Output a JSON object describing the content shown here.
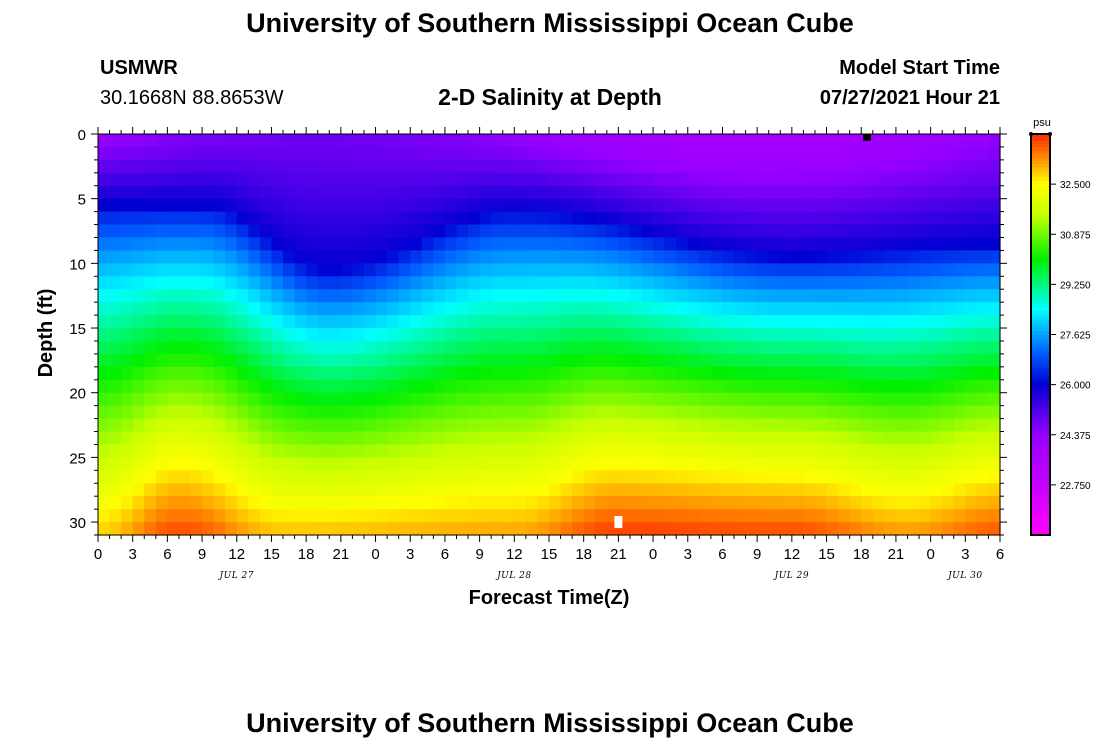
{
  "page": {
    "title_top": "University of Southern Mississippi Ocean Cube",
    "title_bottom": "University of Southern Mississippi Ocean Cube",
    "station": "USMWR",
    "location": "30.1668N  88.8653W",
    "plot_title": "2-D Salinity at Depth",
    "model_start_label": "Model Start Time",
    "model_start_value": "07/27/2021 Hour 21"
  },
  "chart_data": {
    "type": "heatmap",
    "title": "2-D Salinity at Depth",
    "xlabel": "Forecast Time(Z)",
    "ylabel": "Depth (ft)",
    "x_start_hour": 0,
    "x_end_hour": 78,
    "x_ticks": [
      "0",
      "3",
      "6",
      "9",
      "12",
      "15",
      "18",
      "21",
      "0",
      "3",
      "6",
      "9",
      "12",
      "15",
      "18",
      "21",
      "0",
      "3",
      "6",
      "9",
      "12",
      "15",
      "18",
      "21",
      "0",
      "3",
      "6"
    ],
    "day_labels": [
      {
        "text": "JUL 27",
        "hour": 12
      },
      {
        "text": "JUL 28",
        "hour": 36
      },
      {
        "text": "JUL 29",
        "hour": 60
      },
      {
        "text": "JUL 30",
        "hour": 75
      }
    ],
    "y_range": [
      0,
      31
    ],
    "y_ticks": [
      0,
      5,
      10,
      15,
      20,
      25,
      30
    ],
    "colorbar": {
      "unit": "psu",
      "min": 21.125,
      "max": 34.125,
      "tick_values": [
        22.75,
        24.375,
        26.0,
        27.625,
        29.25,
        30.875,
        32.5
      ],
      "tick_labels": [
        "22.750",
        "24.375",
        "26.000",
        "27.625",
        "29.250",
        "30.875",
        "32.500"
      ]
    },
    "model": {
      "time_step_hours": 1,
      "depth_step_ft": 1,
      "description": "Salinity increases with depth; low-salinity (purple/blue) layer deepens near hours 18-21 and 57-66 and shoals near hour 36.",
      "isohaline_depths_26psu": [
        {
          "hour": 0,
          "depth": 5.5
        },
        {
          "hour": 9,
          "depth": 5.5
        },
        {
          "hour": 20,
          "depth": 10.5
        },
        {
          "hour": 36,
          "depth": 6.0
        },
        {
          "hour": 60,
          "depth": 9.5
        },
        {
          "hour": 78,
          "depth": 8.5
        }
      ],
      "bottom_salinity": [
        {
          "hour": 0,
          "psu": 32.9
        },
        {
          "hour": 7,
          "psu": 33.9
        },
        {
          "hour": 16,
          "psu": 33.0
        },
        {
          "hour": 36,
          "psu": 33.2
        },
        {
          "hour": 45,
          "psu": 34.0
        },
        {
          "hour": 60,
          "psu": 33.9
        },
        {
          "hour": 70,
          "psu": 33.3
        },
        {
          "hour": 78,
          "psu": 33.8
        }
      ]
    },
    "markers": [
      {
        "name": "surface-marker",
        "hour": 66.5,
        "depth": 0.25,
        "color": "#000000"
      },
      {
        "name": "bottom-marker",
        "hour": 45,
        "depth": 30,
        "color": "#ffffff"
      }
    ]
  }
}
